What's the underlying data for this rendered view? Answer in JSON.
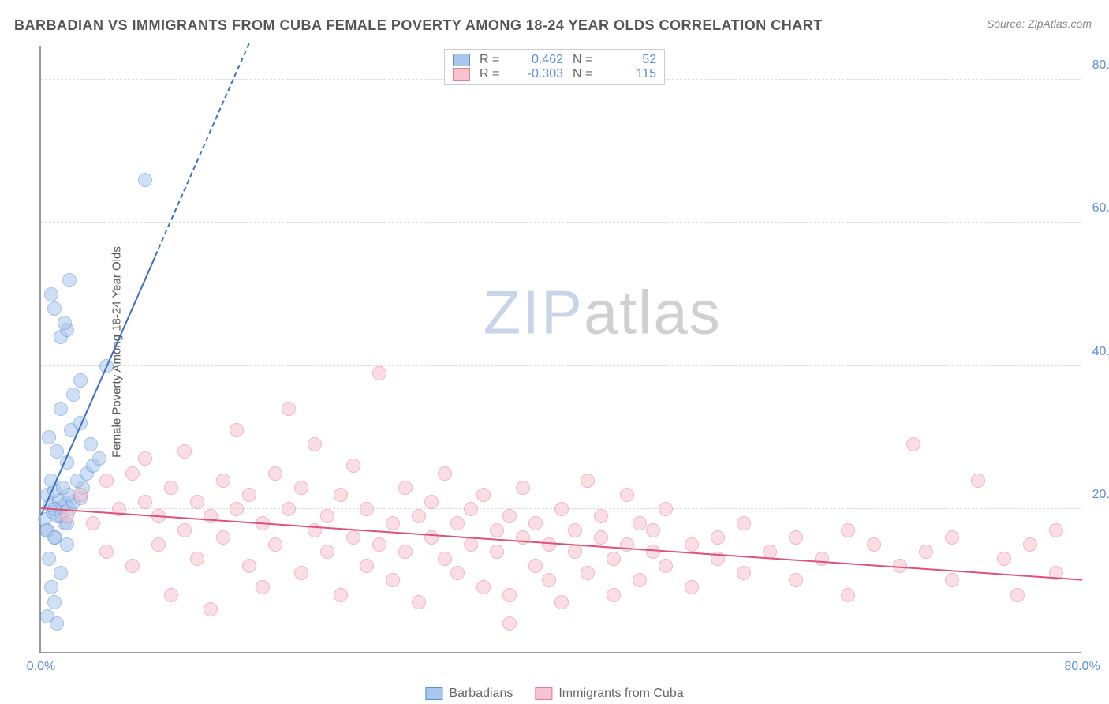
{
  "title": "BARBADIAN VS IMMIGRANTS FROM CUBA FEMALE POVERTY AMONG 18-24 YEAR OLDS CORRELATION CHART",
  "source": "Source: ZipAtlas.com",
  "ylabel": "Female Poverty Among 18-24 Year Olds",
  "watermark_zip": "ZIP",
  "watermark_atlas": "atlas",
  "chart": {
    "type": "scatter",
    "background_color": "#ffffff",
    "grid_color": "#dddddd",
    "axis_color": "#999999",
    "tick_color": "#5b8fd6",
    "tick_fontsize": 16,
    "xlim": [
      0,
      80
    ],
    "ylim": [
      0,
      85
    ],
    "xticks": [
      {
        "v": 0,
        "l": "0.0%"
      },
      {
        "v": 80,
        "l": "80.0%"
      }
    ],
    "yticks": [
      {
        "v": 20,
        "l": "20.0%"
      },
      {
        "v": 40,
        "l": "40.0%"
      },
      {
        "v": 60,
        "l": "60.0%"
      },
      {
        "v": 80,
        "l": "80.0%"
      }
    ],
    "marker_radius": 9,
    "marker_opacity": 0.55,
    "series": [
      {
        "name": "Barbadians",
        "color_fill": "#a9c6ec",
        "color_stroke": "#5b8fd6",
        "R": "0.462",
        "N": "52",
        "trend": {
          "x1": 0,
          "y1": 19,
          "x2": 16,
          "y2": 85,
          "color": "#3b6fc4",
          "dash_extend": true,
          "width": 2.5
        },
        "points": [
          [
            0.5,
            5
          ],
          [
            1.0,
            7
          ],
          [
            1.2,
            4
          ],
          [
            0.8,
            9
          ],
          [
            1.5,
            11
          ],
          [
            0.6,
            13
          ],
          [
            2.0,
            15
          ],
          [
            1.1,
            16
          ],
          [
            0.4,
            17
          ],
          [
            1.8,
            18
          ],
          [
            0.3,
            18.5
          ],
          [
            1.3,
            19
          ],
          [
            0.9,
            19.5
          ],
          [
            2.2,
            20
          ],
          [
            1.6,
            20.2
          ],
          [
            0.7,
            20.5
          ],
          [
            1.9,
            20.8
          ],
          [
            2.5,
            21
          ],
          [
            1.4,
            21.2
          ],
          [
            3.0,
            21.5
          ],
          [
            0.5,
            22
          ],
          [
            2.1,
            22
          ],
          [
            1.0,
            22.5
          ],
          [
            3.2,
            23
          ],
          [
            1.7,
            23
          ],
          [
            2.8,
            24
          ],
          [
            0.8,
            24
          ],
          [
            3.5,
            25
          ],
          [
            4.0,
            26
          ],
          [
            2.0,
            26.5
          ],
          [
            1.2,
            28
          ],
          [
            4.5,
            27
          ],
          [
            3.8,
            29
          ],
          [
            0.6,
            30
          ],
          [
            2.3,
            31
          ],
          [
            3.0,
            32
          ],
          [
            1.5,
            34
          ],
          [
            2.5,
            36
          ],
          [
            3.0,
            38
          ],
          [
            5.0,
            40
          ],
          [
            1.5,
            44
          ],
          [
            2.0,
            45
          ],
          [
            1.8,
            46
          ],
          [
            1.0,
            48
          ],
          [
            0.8,
            50
          ],
          [
            2.2,
            52
          ],
          [
            8.0,
            66
          ],
          [
            1.0,
            20
          ],
          [
            1.5,
            19
          ],
          [
            2.0,
            18
          ],
          [
            0.5,
            17
          ],
          [
            1.0,
            16
          ]
        ]
      },
      {
        "name": "Immigrants from Cuba",
        "color_fill": "#f7c4cf",
        "color_stroke": "#e57b94",
        "R": "-0.303",
        "N": "115",
        "trend": {
          "x1": 0,
          "y1": 20,
          "x2": 80,
          "y2": 10,
          "color": "#e05078",
          "dash_extend": false,
          "width": 2.5
        },
        "points": [
          [
            2,
            19
          ],
          [
            3,
            22
          ],
          [
            4,
            18
          ],
          [
            5,
            24
          ],
          [
            5,
            14
          ],
          [
            6,
            20
          ],
          [
            7,
            25
          ],
          [
            7,
            12
          ],
          [
            8,
            21
          ],
          [
            8,
            27
          ],
          [
            9,
            15
          ],
          [
            9,
            19
          ],
          [
            10,
            23
          ],
          [
            10,
            8
          ],
          [
            11,
            17
          ],
          [
            11,
            28
          ],
          [
            12,
            13
          ],
          [
            12,
            21
          ],
          [
            13,
            19
          ],
          [
            13,
            6
          ],
          [
            14,
            24
          ],
          [
            14,
            16
          ],
          [
            15,
            20
          ],
          [
            15,
            31
          ],
          [
            16,
            12
          ],
          [
            16,
            22
          ],
          [
            17,
            18
          ],
          [
            17,
            9
          ],
          [
            18,
            25
          ],
          [
            18,
            15
          ],
          [
            19,
            34
          ],
          [
            19,
            20
          ],
          [
            20,
            11
          ],
          [
            20,
            23
          ],
          [
            21,
            17
          ],
          [
            21,
            29
          ],
          [
            22,
            14
          ],
          [
            22,
            19
          ],
          [
            23,
            8
          ],
          [
            23,
            22
          ],
          [
            24,
            16
          ],
          [
            24,
            26
          ],
          [
            25,
            12
          ],
          [
            25,
            20
          ],
          [
            26,
            39
          ],
          [
            26,
            15
          ],
          [
            27,
            18
          ],
          [
            27,
            10
          ],
          [
            28,
            23
          ],
          [
            28,
            14
          ],
          [
            29,
            19
          ],
          [
            29,
            7
          ],
          [
            30,
            21
          ],
          [
            30,
            16
          ],
          [
            31,
            13
          ],
          [
            31,
            25
          ],
          [
            32,
            18
          ],
          [
            32,
            11
          ],
          [
            33,
            20
          ],
          [
            33,
            15
          ],
          [
            34,
            9
          ],
          [
            34,
            22
          ],
          [
            35,
            17
          ],
          [
            35,
            14
          ],
          [
            36,
            19
          ],
          [
            36,
            8
          ],
          [
            37,
            16
          ],
          [
            37,
            23
          ],
          [
            38,
            12
          ],
          [
            38,
            18
          ],
          [
            39,
            15
          ],
          [
            39,
            10
          ],
          [
            40,
            20
          ],
          [
            40,
            7
          ],
          [
            41,
            17
          ],
          [
            41,
            14
          ],
          [
            42,
            24
          ],
          [
            42,
            11
          ],
          [
            43,
            16
          ],
          [
            43,
            19
          ],
          [
            44,
            13
          ],
          [
            44,
            8
          ],
          [
            45,
            15
          ],
          [
            45,
            22
          ],
          [
            46,
            18
          ],
          [
            46,
            10
          ],
          [
            47,
            14
          ],
          [
            47,
            17
          ],
          [
            48,
            12
          ],
          [
            48,
            20
          ],
          [
            50,
            15
          ],
          [
            50,
            9
          ],
          [
            52,
            16
          ],
          [
            52,
            13
          ],
          [
            54,
            18
          ],
          [
            54,
            11
          ],
          [
            56,
            14
          ],
          [
            58,
            16
          ],
          [
            58,
            10
          ],
          [
            60,
            13
          ],
          [
            62,
            17
          ],
          [
            62,
            8
          ],
          [
            64,
            15
          ],
          [
            66,
            12
          ],
          [
            67,
            29
          ],
          [
            68,
            14
          ],
          [
            70,
            16
          ],
          [
            70,
            10
          ],
          [
            72,
            24
          ],
          [
            74,
            13
          ],
          [
            75,
            8
          ],
          [
            76,
            15
          ],
          [
            78,
            17
          ],
          [
            78,
            11
          ],
          [
            36,
            4
          ]
        ]
      }
    ],
    "legend_top": {
      "r_label": "R =",
      "n_label": "N ="
    },
    "legend_bottom_labels": [
      "Barbadians",
      "Immigrants from Cuba"
    ]
  }
}
